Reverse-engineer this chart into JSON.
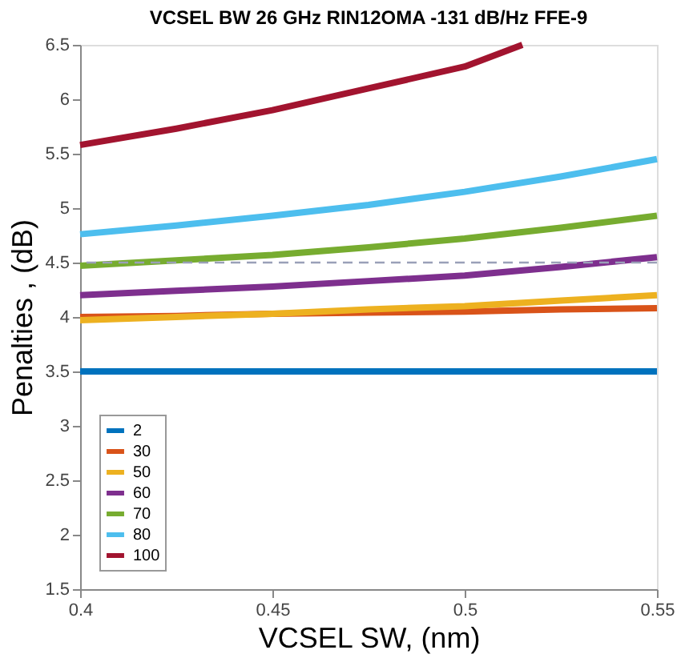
{
  "chart_data": {
    "type": "line",
    "title": "VCSEL BW 26 GHz  RIN12OMA -131 dB/Hz  FFE-9",
    "xlabel": "VCSEL SW, (nm)",
    "ylabel": "Penalties , (dB)",
    "x": [
      0.4,
      0.425,
      0.45,
      0.475,
      0.5,
      0.525,
      0.55
    ],
    "series": [
      {
        "name": "2",
        "color": "#0072bd",
        "values": [
          3.5,
          3.5,
          3.5,
          3.5,
          3.5,
          3.5,
          3.5
        ]
      },
      {
        "name": "30",
        "color": "#d95319",
        "values": [
          4.0,
          4.01,
          4.03,
          4.04,
          4.05,
          4.07,
          4.08
        ]
      },
      {
        "name": "50",
        "color": "#edb120",
        "values": [
          3.97,
          4.0,
          4.03,
          4.07,
          4.1,
          4.15,
          4.2
        ]
      },
      {
        "name": "60",
        "color": "#7e2f8e",
        "values": [
          4.2,
          4.24,
          4.28,
          4.33,
          4.38,
          4.46,
          4.55
        ]
      },
      {
        "name": "70",
        "color": "#77ac30",
        "values": [
          4.47,
          4.52,
          4.57,
          4.64,
          4.72,
          4.82,
          4.93
        ]
      },
      {
        "name": "80",
        "color": "#4dbeee",
        "values": [
          4.76,
          4.84,
          4.93,
          5.03,
          5.15,
          5.29,
          5.45
        ]
      },
      {
        "name": "100",
        "x": [
          0.4,
          0.425,
          0.45,
          0.475,
          0.5,
          0.515
        ],
        "color": "#a2142f",
        "values": [
          5.58,
          5.73,
          5.9,
          6.1,
          6.3,
          6.5
        ]
      }
    ],
    "xlim": [
      0.4,
      0.55
    ],
    "xticks": [
      0.4,
      0.45,
      0.5,
      0.55
    ],
    "ylim": [
      1.5,
      6.5
    ],
    "yticks": [
      1.5,
      2,
      2.5,
      3,
      3.5,
      4,
      4.5,
      5,
      5.5,
      6,
      6.5
    ],
    "ref_lines": [
      {
        "axis": "y",
        "value": 4.5,
        "color": "#9aa0b8",
        "line_style": "dashed"
      }
    ],
    "grid": false,
    "legend": "bottom left",
    "marker": "none",
    "line_style": "solid"
  }
}
